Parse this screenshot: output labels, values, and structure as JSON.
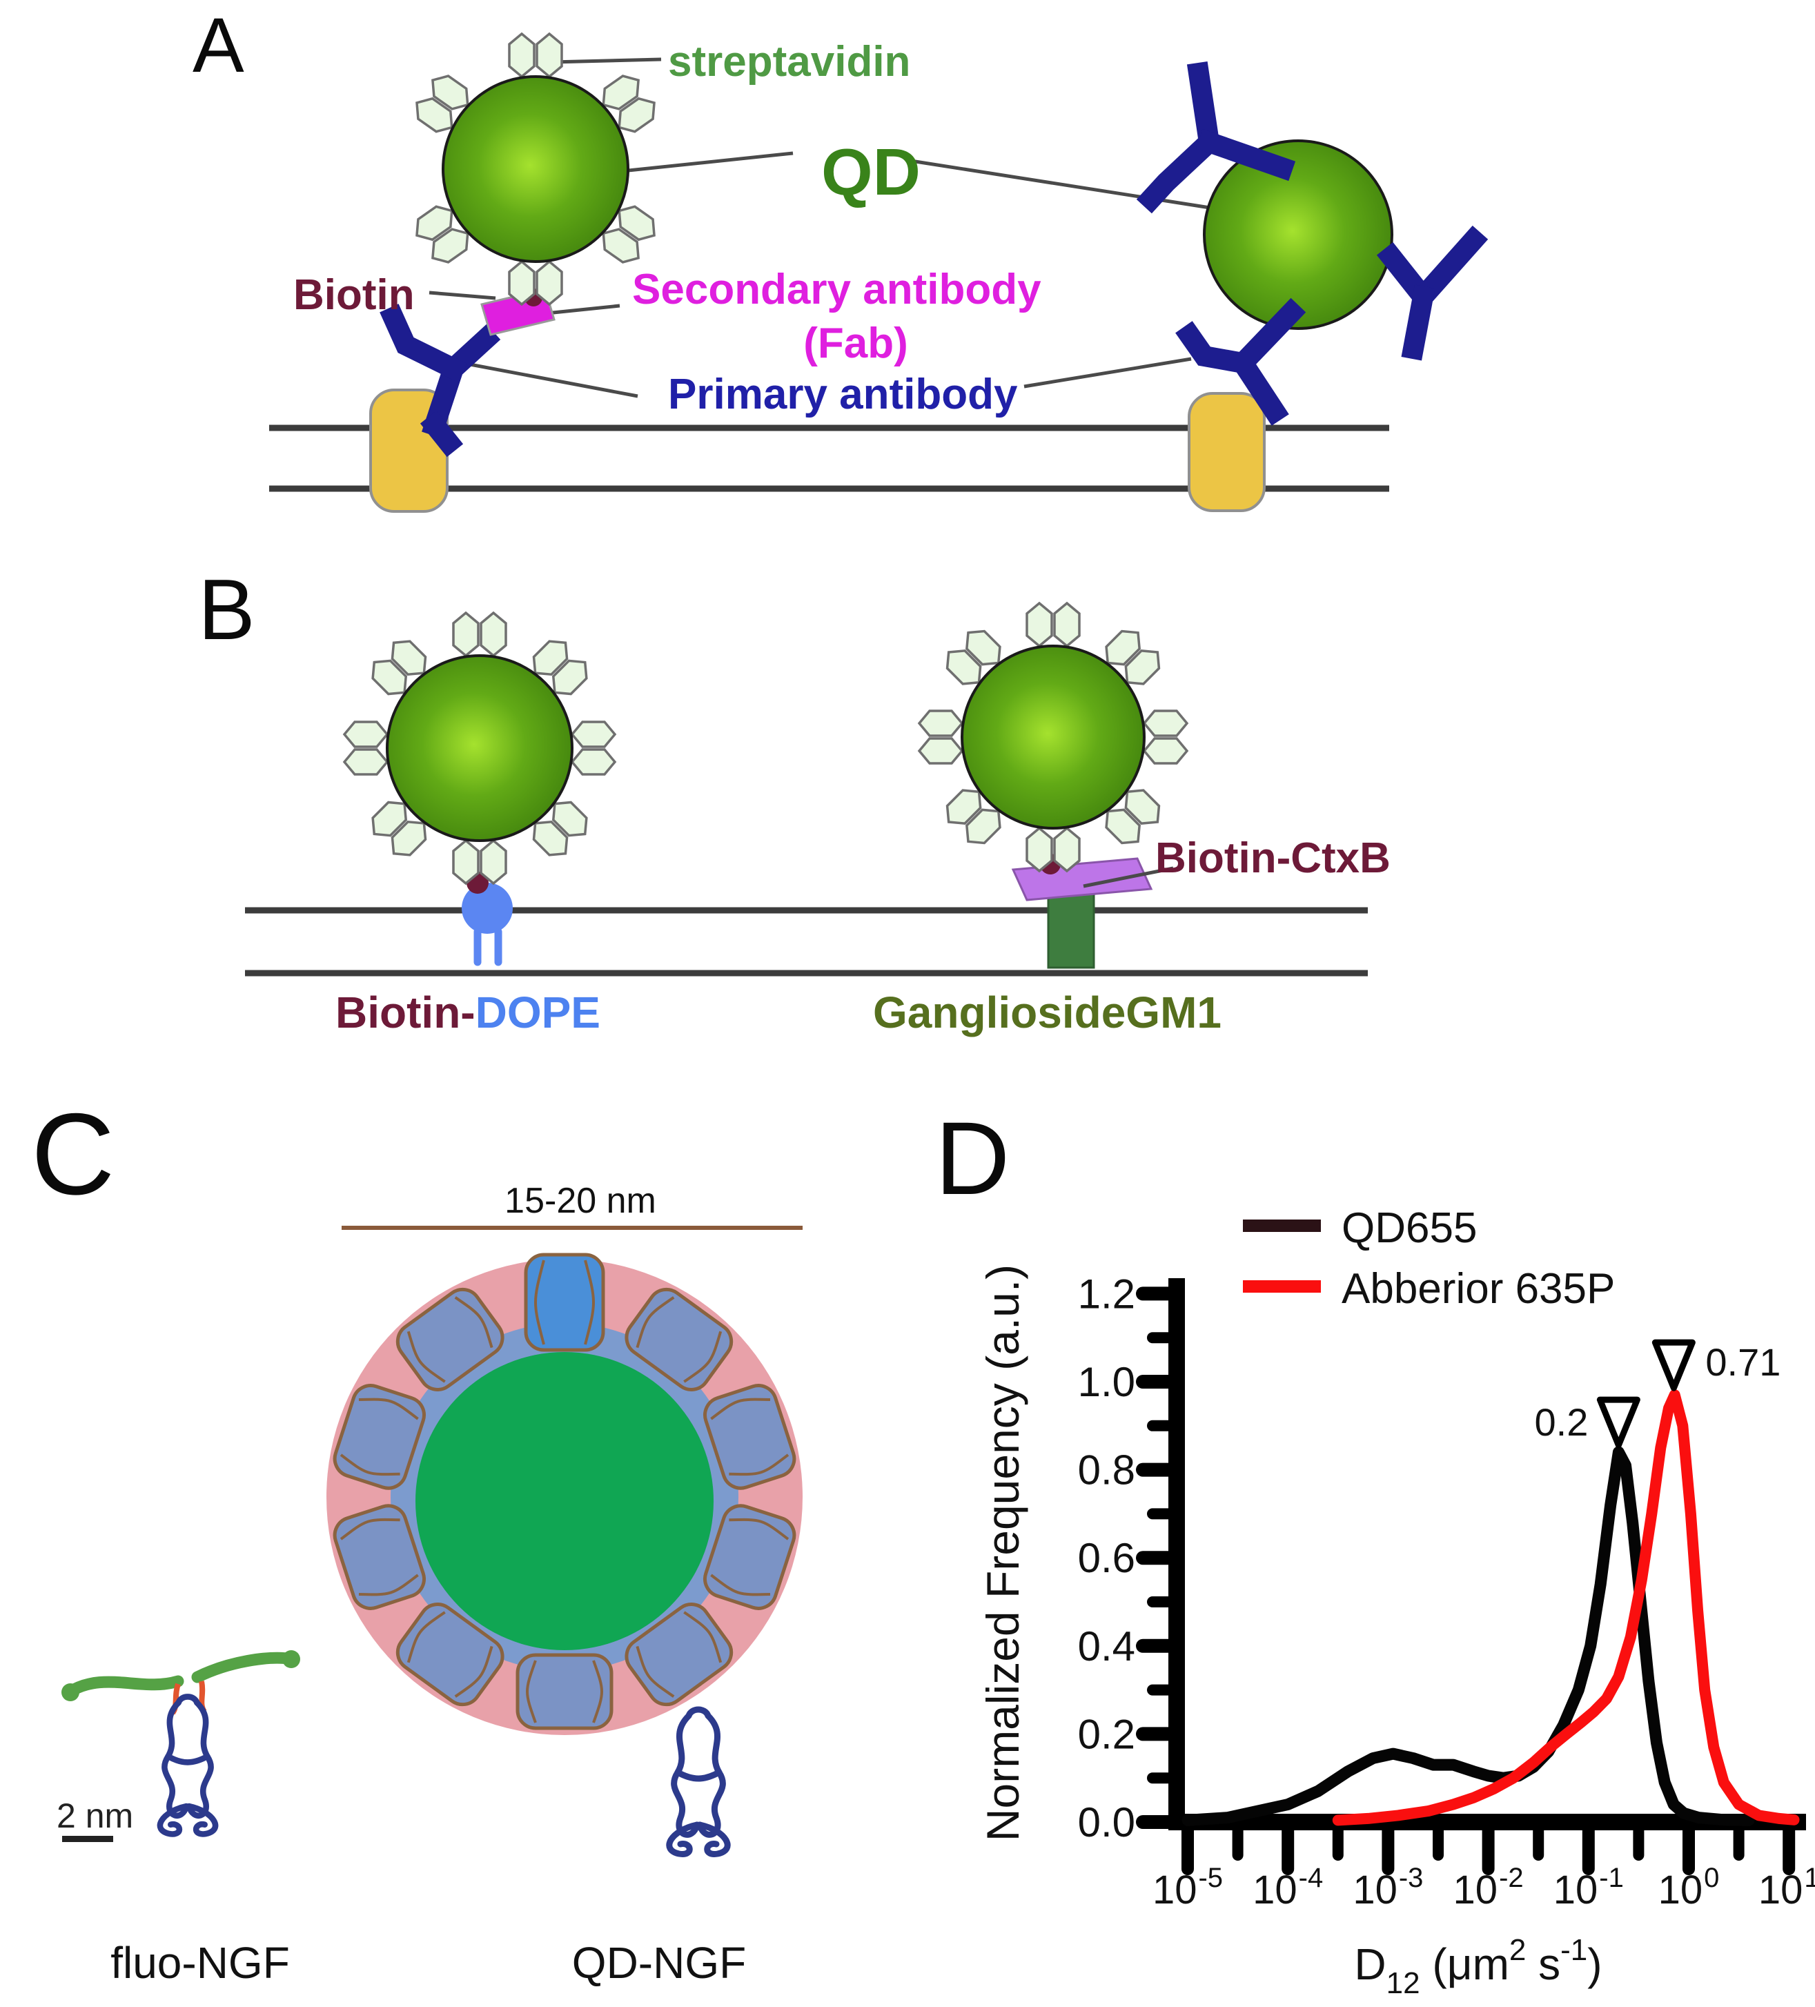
{
  "panels": {
    "a": {
      "label": "A",
      "streptavidin": "streptavidin",
      "qd": "QD",
      "biotin": "Biotin",
      "secondary_antibody_line1": "Secondary antibody",
      "secondary_antibody_line2": "(Fab)",
      "primary_antibody": "Primary antibody"
    },
    "b": {
      "label": "B",
      "biotin_dope_prefix": "Biotin-",
      "biotin_dope_suffix": "DOPE",
      "ganglioside": "GangliosideGM1",
      "biotin_ctxb": "Biotin-CtxB"
    },
    "c": {
      "label": "C",
      "diameter_scale": "15-20 nm",
      "small_scale": "2 nm",
      "fluo_ngf": "fluo-NGF",
      "qd_ngf": "QD-NGF"
    },
    "d": {
      "label": "D"
    }
  },
  "colors": {
    "qd_core_center": "#a5e22e",
    "qd_core_mid": "#62aa16",
    "qd_core_edge": "#3d7e0c",
    "streptavidin_hex_fill": "#e9f7e2",
    "streptavidin_hex_stroke": "#6f6f6f",
    "biotin": "#6d1a38",
    "fab_magenta": "#df1fdf",
    "antibody_navy": "#1d1d8f",
    "primary_label_blue": "#2020a8",
    "membrane_gray": "#3c3c3c",
    "receptor_yellow": "#ecc545",
    "dope_blue": "#5b86f2",
    "ctxb_purple": "#bd75e8",
    "gm1_green": "#3e7d3f",
    "ganglioside_label_olive": "#566f1e",
    "streptavidin_label_green": "#4f9a44",
    "qd_label_green": "#39831a",
    "pink_coating": "#e8a1a9",
    "inner_disc_blue": "#7c9bce",
    "core_green": "#10a653",
    "barrel_blue": "#7b93c5",
    "barrel_top_blue": "#4a8fd8",
    "barrel_outline_brown": "#8a6340",
    "ngf_ribbon_navy": "#2c3a8c",
    "fluo_green": "#55a245",
    "linker_red": "#e2552e",
    "scalebar_brown": "#8a5a3a",
    "leader_gray": "#4a4a4a",
    "chart_red": "#fa0f0f",
    "chart_black": "#050505",
    "legend_swatch_dark": "#2b1216"
  },
  "chart_data": {
    "type": "line",
    "title": "",
    "xlabel": "D12 (um2 s-1)",
    "xlabel_parts": [
      {
        "t": "D",
        "s": "n"
      },
      {
        "t": "12",
        "s": "sub"
      },
      {
        "t": " (μm",
        "s": "n"
      },
      {
        "t": "2",
        "s": "sup"
      },
      {
        "t": " s",
        "s": "n"
      },
      {
        "t": "-1",
        "s": "sup"
      },
      {
        "t": ")",
        "s": "n"
      }
    ],
    "ylabel": "Normalized Frequency (a.u.)",
    "x_scale": "log10",
    "x_decades": [
      -5,
      1
    ],
    "ylim": [
      0,
      1.2
    ],
    "grid": false,
    "legend_position": "top",
    "y_major_ticks": [
      {
        "v": 0.0,
        "label": "0.0"
      },
      {
        "v": 0.2,
        "label": "0.2"
      },
      {
        "v": 0.4,
        "label": "0.4"
      },
      {
        "v": 0.6,
        "label": "0.6"
      },
      {
        "v": 0.8,
        "label": "0.8"
      },
      {
        "v": 1.0,
        "label": "1.0"
      },
      {
        "v": 1.2,
        "label": "1.2"
      }
    ],
    "y_minor_ticks": [
      0.1,
      0.3,
      0.5,
      0.7,
      0.9,
      1.1
    ],
    "x_major_ticks": [
      {
        "log": -5,
        "base": "10",
        "exp": "-5"
      },
      {
        "log": -4,
        "base": "10",
        "exp": "-4"
      },
      {
        "log": -3,
        "base": "10",
        "exp": "-3"
      },
      {
        "log": -2,
        "base": "10",
        "exp": "-2"
      },
      {
        "log": -1,
        "base": "10",
        "exp": "-1"
      },
      {
        "log": 0,
        "base": "10",
        "exp": "0"
      },
      {
        "log": 1,
        "base": "10",
        "exp": "1"
      }
    ],
    "x_minor_ticks_log": [
      -4.5,
      -3.5,
      -2.5,
      -1.5,
      -0.5,
      0.5
    ],
    "series": [
      {
        "name": "QD655",
        "color": "#050505",
        "legend_swatch_color": "#2b1216",
        "peak_annotation": {
          "label": "0.2",
          "x_log": -0.7,
          "y_peak": 0.84,
          "side": "left"
        },
        "points": [
          [
            -5,
            0.004
          ],
          [
            -4.6,
            0.01
          ],
          [
            -4.3,
            0.025
          ],
          [
            -4,
            0.04
          ],
          [
            -3.7,
            0.07
          ],
          [
            -3.4,
            0.115
          ],
          [
            -3.15,
            0.145
          ],
          [
            -2.95,
            0.155
          ],
          [
            -2.75,
            0.145
          ],
          [
            -2.55,
            0.13
          ],
          [
            -2.35,
            0.13
          ],
          [
            -2.15,
            0.115
          ],
          [
            -2,
            0.105
          ],
          [
            -1.85,
            0.1
          ],
          [
            -1.7,
            0.105
          ],
          [
            -1.55,
            0.125
          ],
          [
            -1.4,
            0.16
          ],
          [
            -1.25,
            0.22
          ],
          [
            -1.1,
            0.3
          ],
          [
            -0.98,
            0.4
          ],
          [
            -0.88,
            0.54
          ],
          [
            -0.78,
            0.72
          ],
          [
            -0.7,
            0.84
          ],
          [
            -0.63,
            0.81
          ],
          [
            -0.56,
            0.68
          ],
          [
            -0.48,
            0.5
          ],
          [
            -0.4,
            0.32
          ],
          [
            -0.32,
            0.18
          ],
          [
            -0.24,
            0.09
          ],
          [
            -0.15,
            0.04
          ],
          [
            -0.05,
            0.02
          ],
          [
            0.1,
            0.01
          ],
          [
            0.35,
            0.005
          ],
          [
            0.6,
            0.004
          ]
        ]
      },
      {
        "name": "Abberior 635P",
        "color": "#fa0f0f",
        "legend_swatch_color": "#fa0f0f",
        "peak_annotation": {
          "label": "0.71",
          "x_log": -0.149,
          "y_peak": 0.97,
          "side": "right"
        },
        "points": [
          [
            -3.5,
            0.004
          ],
          [
            -3.2,
            0.008
          ],
          [
            -2.9,
            0.015
          ],
          [
            -2.6,
            0.025
          ],
          [
            -2.35,
            0.04
          ],
          [
            -2.15,
            0.055
          ],
          [
            -1.95,
            0.075
          ],
          [
            -1.75,
            0.1
          ],
          [
            -1.55,
            0.135
          ],
          [
            -1.38,
            0.17
          ],
          [
            -1.22,
            0.2
          ],
          [
            -1.08,
            0.225
          ],
          [
            -0.95,
            0.25
          ],
          [
            -0.82,
            0.28
          ],
          [
            -0.7,
            0.33
          ],
          [
            -0.58,
            0.42
          ],
          [
            -0.47,
            0.55
          ],
          [
            -0.37,
            0.7
          ],
          [
            -0.28,
            0.85
          ],
          [
            -0.2,
            0.94
          ],
          [
            -0.14,
            0.97
          ],
          [
            -0.06,
            0.9
          ],
          [
            0.02,
            0.7
          ],
          [
            0.09,
            0.48
          ],
          [
            0.16,
            0.3
          ],
          [
            0.25,
            0.17
          ],
          [
            0.35,
            0.09
          ],
          [
            0.5,
            0.04
          ],
          [
            0.7,
            0.015
          ],
          [
            0.9,
            0.008
          ],
          [
            1.05,
            0.005
          ]
        ]
      }
    ]
  }
}
